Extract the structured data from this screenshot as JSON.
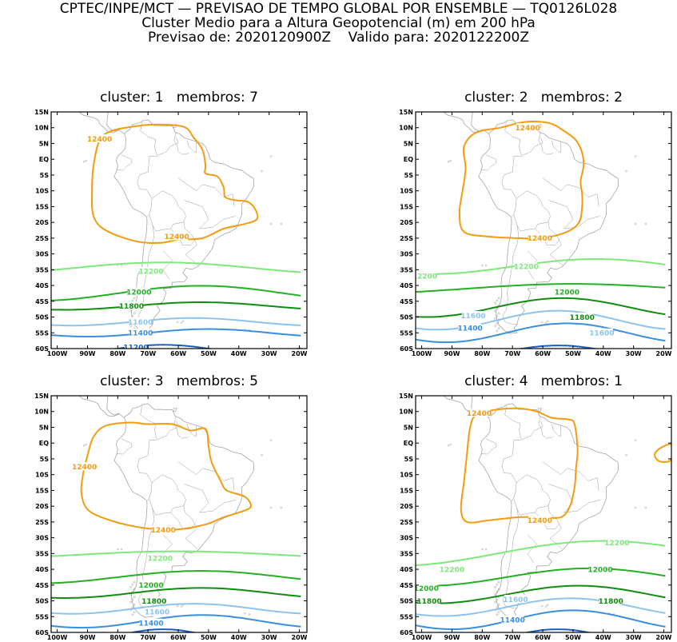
{
  "header": {
    "line1": "CPTEC/INPE/MCT — PREVISAO DE TEMPO GLOBAL POR ENSEMBLE — TQ0126L028",
    "line2": "Cluster Medio para a Altura Geopotencial (m) em 200 hPa",
    "line3": "Previsao de: 2020120900Z    Valido para: 2020122200Z"
  },
  "axes": {
    "lat_labels": [
      "15N",
      "10N",
      "5N",
      "EQ",
      "5S",
      "10S",
      "15S",
      "20S",
      "25S",
      "30S",
      "35S",
      "40S",
      "45S",
      "50S",
      "55S",
      "60S"
    ],
    "lon_labels": [
      "100W",
      "90W",
      "80W",
      "70W",
      "60W",
      "50W",
      "40W",
      "30W",
      "20W"
    ]
  },
  "colors": {
    "12400": "#f39b11",
    "12200": "#7ee87a",
    "12000": "#23b023",
    "11800": "#108c10",
    "11600": "#8cc4ee",
    "11400": "#3a8ede",
    "11200": "#1c5cc0",
    "coast": "#9a9a9a"
  },
  "panels": [
    {
      "title": "cluster: 1   membros: 7",
      "labels": [
        {
          "text": "12400",
          "lon": -86,
          "lat": 6.5,
          "level": "12400"
        },
        {
          "text": "12400",
          "lon": -60.5,
          "lat": -24.5,
          "level": "12400"
        },
        {
          "text": "12200",
          "lon": -69,
          "lat": -35.5,
          "level": "12200"
        },
        {
          "text": "12000",
          "lon": -73,
          "lat": -42,
          "level": "12000"
        },
        {
          "text": "11800",
          "lon": -75.5,
          "lat": -46.5,
          "level": "11800"
        },
        {
          "text": "11600",
          "lon": -72.5,
          "lat": -51.5,
          "level": "11600"
        },
        {
          "text": "11400",
          "lon": -72.5,
          "lat": -55,
          "level": "11400"
        },
        {
          "text": "11200",
          "lon": -74,
          "lat": -59.5,
          "level": "11200"
        }
      ]
    },
    {
      "title": "cluster: 2   membros: 2",
      "labels": [
        {
          "text": "12400",
          "lon": -65,
          "lat": 10,
          "level": "12400"
        },
        {
          "text": "12400",
          "lon": -61,
          "lat": -25,
          "level": "12400"
        },
        {
          "text": "12200",
          "lon": -99,
          "lat": -37,
          "level": "12200"
        },
        {
          "text": "12200",
          "lon": -65.5,
          "lat": -34,
          "level": "12200"
        },
        {
          "text": "12000",
          "lon": -52,
          "lat": -42,
          "level": "12000"
        },
        {
          "text": "11800",
          "lon": -47,
          "lat": -50,
          "level": "11800"
        },
        {
          "text": "11600",
          "lon": -83,
          "lat": -49.5,
          "level": "11600"
        },
        {
          "text": "11600",
          "lon": -40.5,
          "lat": -55,
          "level": "11600"
        },
        {
          "text": "11400",
          "lon": -84,
          "lat": -53.5,
          "level": "11400"
        }
      ]
    },
    {
      "title": "cluster: 3   membros: 5",
      "labels": [
        {
          "text": "12400",
          "lon": -91,
          "lat": -7.5,
          "level": "12400"
        },
        {
          "text": "12400",
          "lon": -65,
          "lat": -27.5,
          "level": "12400"
        },
        {
          "text": "12200",
          "lon": -66,
          "lat": -36.5,
          "level": "12200"
        },
        {
          "text": "12000",
          "lon": -69,
          "lat": -45,
          "level": "12000"
        },
        {
          "text": "11800",
          "lon": -68,
          "lat": -50,
          "level": "11800"
        },
        {
          "text": "11600",
          "lon": -67,
          "lat": -53.5,
          "level": "11600"
        },
        {
          "text": "11400",
          "lon": -69,
          "lat": -57,
          "level": "11400"
        }
      ]
    },
    {
      "title": "cluster: 4   membros: 1",
      "labels": [
        {
          "text": "12400",
          "lon": -81,
          "lat": 9.5,
          "level": "12400"
        },
        {
          "text": "12400",
          "lon": -61,
          "lat": -24.5,
          "level": "12400"
        },
        {
          "text": "12200",
          "lon": -35.5,
          "lat": -31.5,
          "level": "12200"
        },
        {
          "text": "12200",
          "lon": -90,
          "lat": -40,
          "level": "12200"
        },
        {
          "text": "12000",
          "lon": -41,
          "lat": -40,
          "level": "12000"
        },
        {
          "text": "12000",
          "lon": -98.5,
          "lat": -46,
          "level": "12000"
        },
        {
          "text": "11800",
          "lon": -37.5,
          "lat": -50,
          "level": "11800"
        },
        {
          "text": "11800",
          "lon": -97.5,
          "lat": -50,
          "level": "11800"
        },
        {
          "text": "11600",
          "lon": -69,
          "lat": -49.5,
          "level": "11600"
        },
        {
          "text": "11400",
          "lon": -70,
          "lat": -56,
          "level": "11400"
        }
      ]
    }
  ]
}
